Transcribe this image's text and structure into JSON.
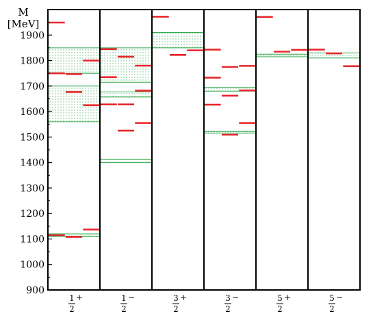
{
  "chart_data": {
    "type": "level-diagram",
    "ylabel_line1": "M",
    "ylabel_line2": "[MeV]",
    "ylim": [
      900,
      2000
    ],
    "yticks": [
      900,
      1000,
      1100,
      1200,
      1300,
      1400,
      1500,
      1600,
      1700,
      1800,
      1900
    ],
    "colors": {
      "level": "#e8262b",
      "band": "#2da64a",
      "frame": "#000000"
    },
    "panels": [
      {
        "label": {
          "num": "1",
          "den": "2",
          "sign": "+"
        },
        "bands": [
          [
            1110,
            1120
          ],
          [
            1560,
            1700
          ],
          [
            1750,
            1850
          ]
        ],
        "levels": [
          {
            "col": 0,
            "m": 1949
          },
          {
            "col": 0,
            "m": 1750
          },
          {
            "col": 0,
            "m": 1115
          },
          {
            "col": 1,
            "m": 1747
          },
          {
            "col": 1,
            "m": 1677
          },
          {
            "col": 1,
            "m": 1108
          },
          {
            "col": 2,
            "m": 1800
          },
          {
            "col": 2,
            "m": 1625
          },
          {
            "col": 2,
            "m": 1137
          }
        ]
      },
      {
        "label": {
          "num": "1",
          "den": "2",
          "sign": "−"
        },
        "bands": [
          [
            1400,
            1412
          ],
          [
            1657,
            1677
          ],
          [
            1715,
            1850
          ]
        ],
        "levels": [
          {
            "col": 0,
            "m": 1845
          },
          {
            "col": 0,
            "m": 1735
          },
          {
            "col": 0,
            "m": 1628
          },
          {
            "col": 1,
            "m": 1815
          },
          {
            "col": 1,
            "m": 1628
          },
          {
            "col": 1,
            "m": 1525
          },
          {
            "col": 2,
            "m": 1780
          },
          {
            "col": 2,
            "m": 1682
          },
          {
            "col": 2,
            "m": 1555
          }
        ]
      },
      {
        "label": {
          "num": "3",
          "den": "2",
          "sign": "+"
        },
        "bands": [
          [
            1850,
            1910
          ]
        ],
        "levels": [
          {
            "col": 0,
            "m": 1972
          },
          {
            "col": 1,
            "m": 1822
          },
          {
            "col": 2,
            "m": 1840
          }
        ]
      },
      {
        "label": {
          "num": "3",
          "den": "2",
          "sign": "−"
        },
        "bands": [
          [
            1515,
            1522
          ],
          [
            1680,
            1695
          ]
        ],
        "levels": [
          {
            "col": 0,
            "m": 1843
          },
          {
            "col": 0,
            "m": 1733
          },
          {
            "col": 0,
            "m": 1627
          },
          {
            "col": 1,
            "m": 1775
          },
          {
            "col": 1,
            "m": 1662
          },
          {
            "col": 1,
            "m": 1509
          },
          {
            "col": 2,
            "m": 1779
          },
          {
            "col": 2,
            "m": 1683
          },
          {
            "col": 2,
            "m": 1555
          }
        ]
      },
      {
        "label": {
          "num": "5",
          "den": "2",
          "sign": "+"
        },
        "bands": [
          [
            1815,
            1825
          ]
        ],
        "levels": [
          {
            "col": 0,
            "m": 1971
          },
          {
            "col": 1,
            "m": 1835
          },
          {
            "col": 2,
            "m": 1842
          }
        ]
      },
      {
        "label": {
          "num": "5",
          "den": "2",
          "sign": "−"
        },
        "bands": [
          [
            1810,
            1830
          ]
        ],
        "levels": [
          {
            "col": 0,
            "m": 1843
          },
          {
            "col": 1,
            "m": 1828
          },
          {
            "col": 2,
            "m": 1778
          }
        ]
      }
    ]
  }
}
